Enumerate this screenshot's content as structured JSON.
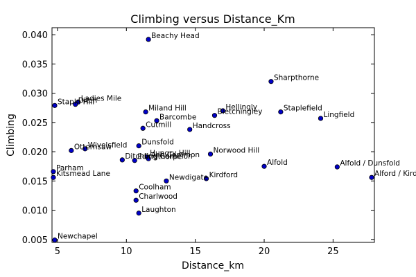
{
  "chart_data": {
    "type": "scatter",
    "title": "Climbing versus Distance_Km",
    "xlabel": "Distance_km",
    "ylabel": "Climbing",
    "xlim": [
      4.6,
      28.0
    ],
    "ylim": [
      0.0045,
      0.0412
    ],
    "xticks": [
      5,
      10,
      15,
      20,
      25
    ],
    "yticks": [
      0.005,
      0.01,
      0.015,
      0.02,
      0.025,
      0.03,
      0.035,
      0.04
    ],
    "xtick_labels": [
      "5",
      "10",
      "15",
      "20",
      "25"
    ],
    "ytick_labels": [
      "0.005",
      "0.010",
      "0.015",
      "0.020",
      "0.025",
      "0.030",
      "0.035",
      "0.040"
    ],
    "grid": false,
    "marker_color": "#0000c8",
    "points": [
      {
        "label": "Beachy Head",
        "x": 11.6,
        "y": 0.0392
      },
      {
        "label": "Sharpthorne",
        "x": 20.5,
        "y": 0.032
      },
      {
        "label": "Staple Hill",
        "x": 4.8,
        "y": 0.0279
      },
      {
        "label": "Ladies Mile",
        "x": 6.5,
        "y": 0.0285
      },
      {
        "label": "Ditch",
        "x": 6.3,
        "y": 0.0281
      },
      {
        "label": "Miland Hill",
        "x": 11.4,
        "y": 0.0268
      },
      {
        "label": "Hellingly",
        "x": 17.0,
        "y": 0.027
      },
      {
        "label": "Bletchingley",
        "x": 16.4,
        "y": 0.0262
      },
      {
        "label": "Staplefield",
        "x": 21.2,
        "y": 0.0268
      },
      {
        "label": "Lingfield",
        "x": 24.1,
        "y": 0.0257
      },
      {
        "label": "Barcombe",
        "x": 12.2,
        "y": 0.0253
      },
      {
        "label": "Cutmill",
        "x": 11.2,
        "y": 0.024
      },
      {
        "label": "Handcross",
        "x": 14.6,
        "y": 0.0238
      },
      {
        "label": "Dunsfold",
        "x": 10.9,
        "y": 0.021
      },
      {
        "label": "Otterhsaw",
        "x": 6.0,
        "y": 0.0202
      },
      {
        "label": "Wivelsfield",
        "x": 7.0,
        "y": 0.0205
      },
      {
        "label": "Norwood Hill",
        "x": 16.1,
        "y": 0.0196
      },
      {
        "label": "Hungry Hill",
        "x": 11.5,
        "y": 0.0191
      },
      {
        "label": "Ditchling Common",
        "x": 9.7,
        "y": 0.0186
      },
      {
        "label": "Edingthorpe",
        "x": 10.6,
        "y": 0.0185
      },
      {
        "label": "Ash Common",
        "x": 11.6,
        "y": 0.0188
      },
      {
        "label": "Alfold",
        "x": 20.0,
        "y": 0.0175
      },
      {
        "label": "Alfold / Dunsfold",
        "x": 25.3,
        "y": 0.0174
      },
      {
        "label": "Alford / Kird",
        "x": 27.8,
        "y": 0.0156
      },
      {
        "label": "Parham",
        "x": 4.7,
        "y": 0.0166
      },
      {
        "label": "Kitsmead Lane",
        "x": 4.7,
        "y": 0.0156
      },
      {
        "label": "Kirdford",
        "x": 15.8,
        "y": 0.0154
      },
      {
        "label": "Newdigate",
        "x": 12.9,
        "y": 0.015
      },
      {
        "label": "Coolham",
        "x": 10.7,
        "y": 0.0133
      },
      {
        "label": "Charlwood",
        "x": 10.7,
        "y": 0.0117
      },
      {
        "label": "Laughton",
        "x": 10.9,
        "y": 0.0095
      },
      {
        "label": "Newchapel",
        "x": 4.8,
        "y": 0.0049
      }
    ]
  }
}
